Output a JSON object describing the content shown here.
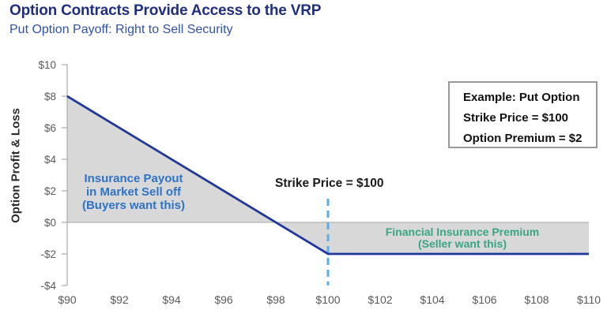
{
  "header": {
    "title": "Option Contracts Provide Access to the VRP",
    "subtitle": "Put Option Payoff: Right to Sell Security"
  },
  "chart_data": {
    "type": "line",
    "y_axis_title": "Option Profit & Loss",
    "x_domain": [
      90,
      110
    ],
    "y_domain": [
      -4,
      10
    ],
    "x_ticks": [
      {
        "label": "$90",
        "value": 90
      },
      {
        "label": "$92",
        "value": 92
      },
      {
        "label": "$94",
        "value": 94
      },
      {
        "label": "$96",
        "value": 96
      },
      {
        "label": "$98",
        "value": 98
      },
      {
        "label": "$100",
        "value": 100
      },
      {
        "label": "$102",
        "value": 102
      },
      {
        "label": "$104",
        "value": 104
      },
      {
        "label": "$106",
        "value": 106
      },
      {
        "label": "$108",
        "value": 108
      },
      {
        "label": "$110",
        "value": 110
      }
    ],
    "y_ticks": [
      {
        "label": "$10",
        "value": 10
      },
      {
        "label": "$8",
        "value": 8
      },
      {
        "label": "$6",
        "value": 6
      },
      {
        "label": "$4",
        "value": 4
      },
      {
        "label": "$2",
        "value": 2
      },
      {
        "label": "$0",
        "value": 0
      },
      {
        "label": "-$2",
        "value": -2
      },
      {
        "label": "-$4",
        "value": -4
      }
    ],
    "series": [
      {
        "color": "#20389b",
        "points": [
          [
            90,
            8
          ],
          [
            100,
            -2
          ],
          [
            110,
            -2
          ]
        ]
      }
    ],
    "shaded_region": {
      "color": "#d8d8d8"
    },
    "strike_line": {
      "x": 100,
      "y_top": 1.5,
      "y_bottom": -4,
      "color": "#5badea",
      "style": "dashed"
    },
    "zero_line_color": "#b3b3b3",
    "axis_color": "#ababab",
    "tick_text_color": "#595959"
  },
  "annotations": {
    "strike": {
      "text": "Strike Price = $100",
      "color": "#1a1a1a"
    },
    "insurance": {
      "lines": [
        "Insurance Payout",
        "in Market Sell off",
        "(Buyers want this)"
      ],
      "color": "#2e73c5"
    },
    "premium": {
      "lines": [
        "Financial Insurance Premium",
        "(Seller want this)"
      ],
      "color": "#3aa585"
    }
  },
  "legend_box": {
    "lines": [
      "Example: Put Option",
      "Strike Price = $100",
      "Option Premium = $2"
    ]
  }
}
